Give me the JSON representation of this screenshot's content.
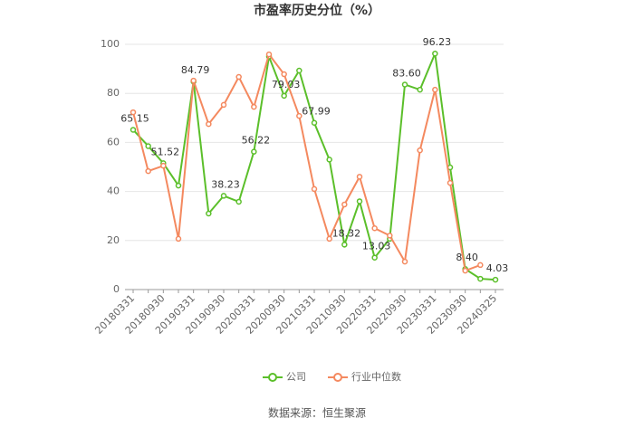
{
  "chart_data": {
    "type": "line",
    "title": "市盈率历史分位（%）",
    "categories": [
      "20180331",
      null,
      "20180930",
      null,
      "20190331",
      null,
      "20190930",
      null,
      "20200331",
      null,
      "20200930",
      null,
      "20210331",
      null,
      "20210930",
      null,
      "20220331",
      null,
      "20220930",
      null,
      "20230331",
      null,
      "20230930",
      null,
      "20240325"
    ],
    "series": [
      {
        "name": "公司",
        "color": "#5bbf2a",
        "values": [
          65.15,
          58.5,
          51.52,
          42.4,
          84.79,
          31,
          38.23,
          35.8,
          56.22,
          95,
          79.03,
          89.3,
          67.99,
          53,
          18.32,
          36,
          13.03,
          20.7,
          83.6,
          81.5,
          96.23,
          49.8,
          8.4,
          4.4,
          4.03
        ],
        "value_labels": [
          "65.15",
          null,
          "51.52",
          null,
          "84.79",
          null,
          "38.23",
          null,
          "56.22",
          null,
          "79.03",
          null,
          "67.99",
          null,
          "18.32",
          null,
          "13.03",
          null,
          "83.60",
          null,
          "96.23",
          null,
          "8.40",
          null,
          "4.03"
        ]
      },
      {
        "name": "行业中位数",
        "color": "#f4895f",
        "values": [
          72.3,
          48.3,
          50.5,
          20.7,
          85.2,
          67.5,
          75.3,
          86.7,
          74.5,
          95.9,
          87.8,
          70.8,
          41,
          20.7,
          34.7,
          46,
          25,
          22,
          11.4,
          56.8,
          81.5,
          43.5,
          7.7,
          10,
          null
        ]
      }
    ],
    "ylim": [
      0,
      100
    ],
    "yticks": [
      0,
      20,
      40,
      60,
      80,
      100
    ],
    "grid": true,
    "legend": "bottom",
    "source": "数据来源：恒生聚源"
  }
}
